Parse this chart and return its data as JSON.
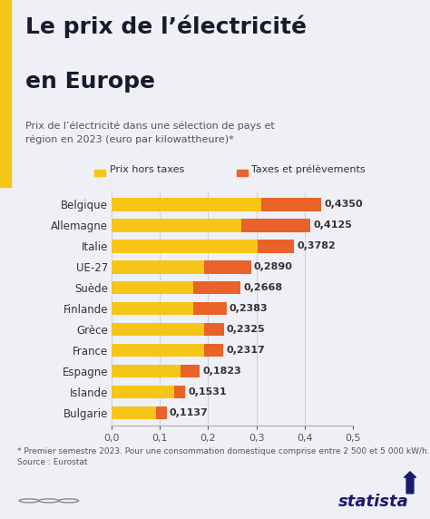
{
  "title_line1": "Le prix de l’électricité",
  "title_line2": "en Europe",
  "subtitle": "Prix de l’électricité dans une sélection de pays et\nrégion en 2023 (euro par kilowattheure)*",
  "legend_yellow": "Prix hors taxes",
  "legend_orange": "Taxes et prélèvements",
  "footnote": "* Premier semestre 2023. Pour une consommation domestique comprise entre 2 500 et 5 000 kW/h.\nSource : Eurostat",
  "countries": [
    "Belgique",
    "Allemagne",
    "Italie",
    "UE-27",
    "Suède",
    "Finlande",
    "Grèce",
    "France",
    "Espagne",
    "Islande",
    "Bulgarie"
  ],
  "total": [
    0.435,
    0.4125,
    0.3782,
    0.289,
    0.2668,
    0.2383,
    0.2325,
    0.2317,
    0.1823,
    0.1531,
    0.1137
  ],
  "yellow": [
    0.31,
    0.268,
    0.302,
    0.191,
    0.17,
    0.17,
    0.192,
    0.191,
    0.142,
    0.13,
    0.091
  ],
  "orange": [
    0.125,
    0.145,
    0.076,
    0.098,
    0.097,
    0.068,
    0.041,
    0.041,
    0.04,
    0.023,
    0.023
  ],
  "color_yellow": "#F5C518",
  "color_orange": "#E8622A",
  "color_title_bar": "#F5C518",
  "bg_color": "#EEF0F5",
  "bg_title": "#FFFFFF",
  "text_title_color": "#1a1a2e",
  "text_body_color": "#333333",
  "text_sub_color": "#555555",
  "statista_color": "#1a1a6e",
  "xlim": [
    0,
    0.5
  ],
  "xticks": [
    0.0,
    0.1,
    0.2,
    0.3,
    0.4,
    0.5
  ],
  "xtick_labels": [
    "0,0",
    "0,1",
    "0,2",
    "0,3",
    "0,4",
    "0,5"
  ],
  "title_fontsize": 18,
  "subtitle_fontsize": 8,
  "country_fontsize": 8.5,
  "value_fontsize": 8,
  "legend_fontsize": 8,
  "footnote_fontsize": 6.5,
  "statista_fontsize": 13
}
